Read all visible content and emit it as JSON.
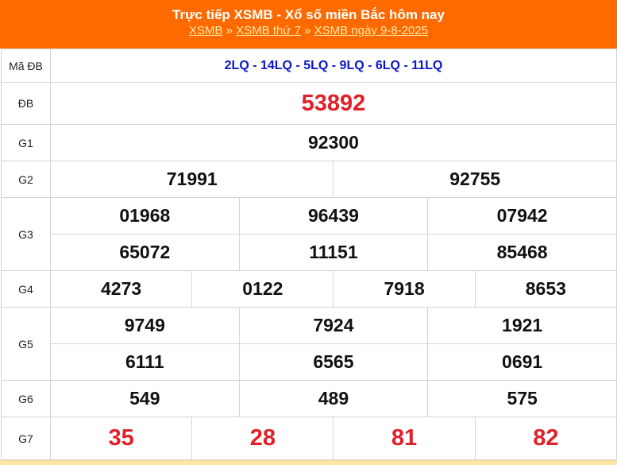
{
  "header": {
    "title": "Trực tiếp XSMB - Xổ số miền Bắc hôm nay",
    "breadcrumb": [
      {
        "label": "XSMB"
      },
      {
        "label": "XSMB thứ 7"
      },
      {
        "label": "XSMB ngày 9-8-2025"
      }
    ],
    "separator": "»"
  },
  "rows": {
    "ma_db": {
      "label": "Mã ĐB",
      "value": "2LQ - 14LQ - 5LQ - 9LQ - 6LQ - 11LQ"
    },
    "db": {
      "label": "ĐB",
      "values": [
        "53892"
      ]
    },
    "g1": {
      "label": "G1",
      "values": [
        "92300"
      ]
    },
    "g2": {
      "label": "G2",
      "values": [
        "71991",
        "92755"
      ]
    },
    "g3": {
      "label": "G3",
      "values": [
        "01968",
        "96439",
        "07942",
        "65072",
        "11151",
        "85468"
      ]
    },
    "g4": {
      "label": "G4",
      "values": [
        "4273",
        "0122",
        "7918",
        "8653"
      ]
    },
    "g5": {
      "label": "G5",
      "values": [
        "9749",
        "7924",
        "1921",
        "6111",
        "6565",
        "0691"
      ]
    },
    "g6": {
      "label": "G6",
      "values": [
        "549",
        "489",
        "575"
      ]
    },
    "g7": {
      "label": "G7",
      "values": [
        "35",
        "28",
        "81",
        "82"
      ]
    }
  },
  "colors": {
    "header": "#ff6a00",
    "special": "#e0202a",
    "code": "#0a16c8"
  }
}
